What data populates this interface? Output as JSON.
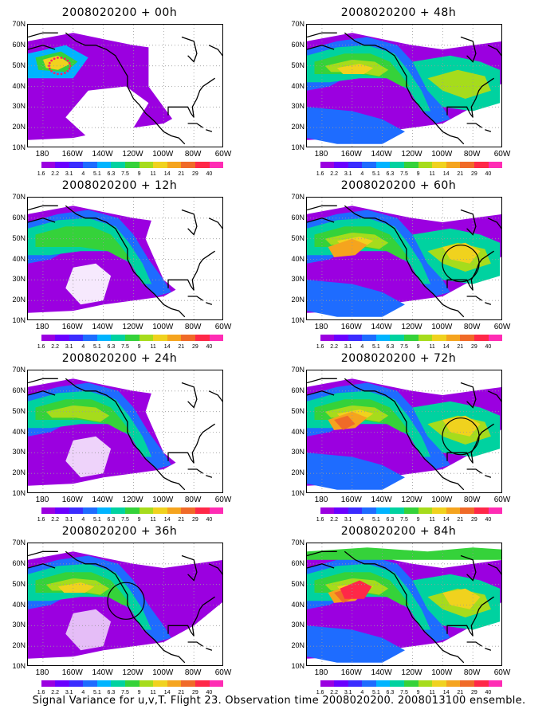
{
  "caption": "Signal Variance for u,v,T. Flight 23. Observation time 2008020200. 2008013100 ensemble.",
  "lat_labels": [
    "70N",
    "60N",
    "50N",
    "40N",
    "30N",
    "20N",
    "10N"
  ],
  "lon_labels": [
    "180",
    "160W",
    "140W",
    "120W",
    "100W",
    "80W",
    "60W"
  ],
  "colorbar": {
    "labels": [
      "1.6",
      "2.2",
      "3.1",
      "4",
      "5.1",
      "6.3",
      "7.5",
      "9",
      "11",
      "14",
      "21",
      "29",
      "40"
    ],
    "colors": [
      "#9b00e0",
      "#6a00ff",
      "#3b2cff",
      "#1e6cff",
      "#00b4ff",
      "#00d2a0",
      "#35d23a",
      "#a6dc1c",
      "#f0d21e",
      "#f5a41e",
      "#f06a28",
      "#ff2848",
      "#ff2cb4"
    ]
  },
  "panels": [
    {
      "title": "2008020200 + 00h",
      "col": 0,
      "row": 0,
      "intensity": 0,
      "circle": false
    },
    {
      "title": "2008020200 + 12h",
      "col": 0,
      "row": 1,
      "intensity": 1,
      "circle": false
    },
    {
      "title": "2008020200 + 24h",
      "col": 0,
      "row": 2,
      "intensity": 2,
      "circle": false
    },
    {
      "title": "2008020200 + 36h",
      "col": 0,
      "row": 3,
      "intensity": 3,
      "circle": true
    },
    {
      "title": "2008020200 + 48h",
      "col": 1,
      "row": 0,
      "intensity": 4,
      "circle": false
    },
    {
      "title": "2008020200 + 60h",
      "col": 1,
      "row": 1,
      "intensity": 5,
      "circle": true
    },
    {
      "title": "2008020200 + 72h",
      "col": 1,
      "row": 2,
      "intensity": 6,
      "circle": true
    },
    {
      "title": "2008020200 + 84h",
      "col": 1,
      "row": 3,
      "intensity": 7,
      "circle": false
    }
  ]
}
